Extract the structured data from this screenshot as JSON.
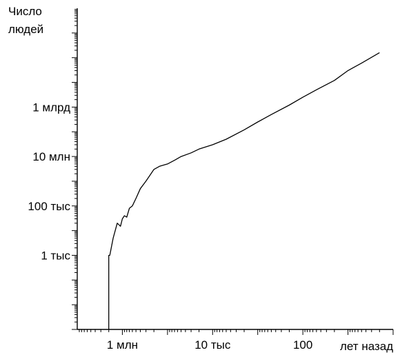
{
  "chart_data": {
    "type": "line",
    "ylabel": "Число людей",
    "xlabel": "лет назад",
    "x_scale": "log",
    "y_scale": "log",
    "x_reversed": true,
    "xlim": [
      10000000,
      1
    ],
    "ylim": [
      1,
      10000000000000
    ],
    "xticks": [
      {
        "value": 1000000,
        "label": "1 млн"
      },
      {
        "value": 10000,
        "label": "10 тыс"
      },
      {
        "value": 100,
        "label": "100"
      }
    ],
    "yticks": [
      {
        "value": 1000,
        "label": "1 тыс"
      },
      {
        "value": 100000,
        "label": "100 тыс"
      },
      {
        "value": 10000000,
        "label": "10 млн"
      },
      {
        "value": 1000000000,
        "label": "1 млрд"
      }
    ],
    "series": [
      {
        "x": [
          2000000,
          1900000,
          1600000,
          1300000,
          1100000,
          1000000,
          900000,
          800000,
          700000,
          600000,
          500000,
          400000,
          300000,
          200000,
          150000,
          100000,
          70000,
          50000,
          30000,
          20000,
          10000,
          5000,
          2000,
          1000,
          500,
          200,
          100,
          50,
          20,
          10,
          5,
          2
        ],
        "y": [
          2,
          1000,
          5000,
          20000,
          15000,
          30000,
          40000,
          35000,
          80000,
          100000,
          200000,
          500000,
          1000000,
          3000000,
          4000000,
          5000000,
          7000000,
          10000000,
          14000000,
          20000000,
          30000000,
          50000000,
          120000000,
          250000000,
          500000000,
          1200000000,
          2500000000,
          5000000000,
          12000000000,
          30000000000,
          60000000000,
          160000000000
        ]
      }
    ]
  }
}
